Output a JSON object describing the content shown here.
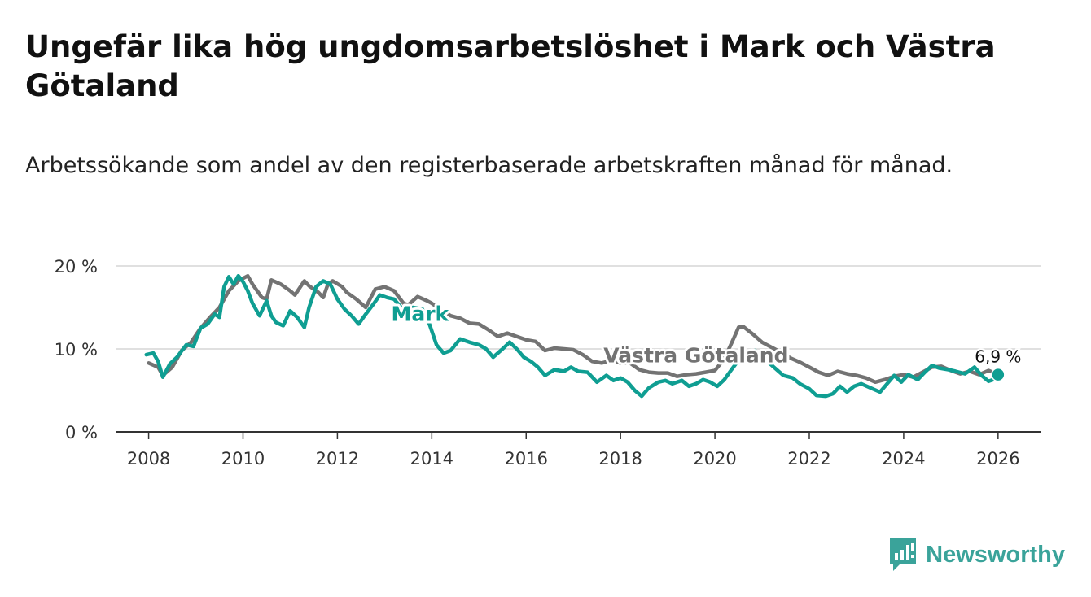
{
  "brand": {
    "name": "Newsworthy",
    "color": "#3aa39a"
  },
  "chart_data": {
    "type": "line",
    "title": "Ungefär lika hög ungdomsarbetslöshet i Mark och Västra Götaland",
    "subtitle": "Arbetssökande som andel av den registerbaserade arbetskraften månad för månad.",
    "xlabel": "",
    "ylabel": "",
    "xlim": [
      2007.3,
      2026.9
    ],
    "ylim": [
      0,
      20
    ],
    "grid": true,
    "x_ticks": [
      {
        "value": 2008,
        "label": "2008"
      },
      {
        "value": 2010,
        "label": "2010"
      },
      {
        "value": 2012,
        "label": "2012"
      },
      {
        "value": 2014,
        "label": "2014"
      },
      {
        "value": 2016,
        "label": "2016"
      },
      {
        "value": 2018,
        "label": "2018"
      },
      {
        "value": 2020,
        "label": "2020"
      },
      {
        "value": 2022,
        "label": "2022"
      },
      {
        "value": 2024,
        "label": "2024"
      },
      {
        "value": 2026,
        "label": "2026"
      }
    ],
    "y_ticks": [
      {
        "value": 0,
        "label": "0 %"
      },
      {
        "value": 10,
        "label": "10 %"
      },
      {
        "value": 20,
        "label": "20 %"
      }
    ],
    "series": [
      {
        "name": "Västra Götaland",
        "color": "#737373",
        "points": [
          [
            2008.0,
            8.3
          ],
          [
            2008.2,
            7.8
          ],
          [
            2008.3,
            6.8
          ],
          [
            2008.5,
            7.8
          ],
          [
            2008.7,
            9.8
          ],
          [
            2008.9,
            10.8
          ],
          [
            2009.1,
            12.5
          ],
          [
            2009.3,
            13.8
          ],
          [
            2009.5,
            15.0
          ],
          [
            2009.7,
            17.0
          ],
          [
            2009.9,
            18.2
          ],
          [
            2010.1,
            18.8
          ],
          [
            2010.2,
            17.8
          ],
          [
            2010.4,
            16.2
          ],
          [
            2010.5,
            16.0
          ],
          [
            2010.6,
            18.3
          ],
          [
            2010.8,
            17.8
          ],
          [
            2011.0,
            17.0
          ],
          [
            2011.1,
            16.5
          ],
          [
            2011.3,
            18.2
          ],
          [
            2011.4,
            17.6
          ],
          [
            2011.6,
            16.8
          ],
          [
            2011.7,
            16.2
          ],
          [
            2011.8,
            17.8
          ],
          [
            2011.9,
            18.2
          ],
          [
            2012.1,
            17.5
          ],
          [
            2012.2,
            16.8
          ],
          [
            2012.4,
            16.0
          ],
          [
            2012.6,
            15.0
          ],
          [
            2012.8,
            17.2
          ],
          [
            2013.0,
            17.5
          ],
          [
            2013.2,
            17.0
          ],
          [
            2013.4,
            15.5
          ],
          [
            2013.5,
            15.3
          ],
          [
            2013.7,
            16.3
          ],
          [
            2013.9,
            15.8
          ],
          [
            2014.0,
            15.5
          ],
          [
            2014.2,
            14.7
          ],
          [
            2014.4,
            14.0
          ],
          [
            2014.6,
            13.7
          ],
          [
            2014.8,
            13.1
          ],
          [
            2015.0,
            13.0
          ],
          [
            2015.2,
            12.3
          ],
          [
            2015.4,
            11.5
          ],
          [
            2015.6,
            11.9
          ],
          [
            2015.8,
            11.5
          ],
          [
            2016.0,
            11.1
          ],
          [
            2016.2,
            10.9
          ],
          [
            2016.4,
            9.8
          ],
          [
            2016.6,
            10.1
          ],
          [
            2016.8,
            10.0
          ],
          [
            2017.0,
            9.9
          ],
          [
            2017.2,
            9.3
          ],
          [
            2017.4,
            8.5
          ],
          [
            2017.6,
            8.3
          ],
          [
            2017.8,
            8.6
          ],
          [
            2018.0,
            8.3
          ],
          [
            2018.2,
            8.3
          ],
          [
            2018.4,
            7.5
          ],
          [
            2018.6,
            7.2
          ],
          [
            2018.8,
            7.1
          ],
          [
            2019.0,
            7.1
          ],
          [
            2019.2,
            6.7
          ],
          [
            2019.4,
            6.9
          ],
          [
            2019.6,
            7.0
          ],
          [
            2019.8,
            7.2
          ],
          [
            2020.0,
            7.4
          ],
          [
            2020.2,
            8.8
          ],
          [
            2020.4,
            11.3
          ],
          [
            2020.5,
            12.6
          ],
          [
            2020.6,
            12.7
          ],
          [
            2020.8,
            11.8
          ],
          [
            2021.0,
            10.8
          ],
          [
            2021.2,
            10.2
          ],
          [
            2021.4,
            9.6
          ],
          [
            2021.6,
            8.9
          ],
          [
            2021.8,
            8.4
          ],
          [
            2022.0,
            7.8
          ],
          [
            2022.2,
            7.2
          ],
          [
            2022.4,
            6.8
          ],
          [
            2022.6,
            7.3
          ],
          [
            2022.8,
            7.0
          ],
          [
            2023.0,
            6.8
          ],
          [
            2023.2,
            6.5
          ],
          [
            2023.4,
            6.0
          ],
          [
            2023.6,
            6.3
          ],
          [
            2023.8,
            6.7
          ],
          [
            2024.0,
            6.9
          ],
          [
            2024.2,
            6.6
          ],
          [
            2024.4,
            7.2
          ],
          [
            2024.6,
            7.8
          ],
          [
            2024.8,
            7.9
          ],
          [
            2025.0,
            7.4
          ],
          [
            2025.2,
            7.0
          ],
          [
            2025.4,
            7.3
          ],
          [
            2025.6,
            6.9
          ],
          [
            2025.8,
            7.4
          ],
          [
            2026.0,
            6.9
          ]
        ]
      },
      {
        "name": "Mark",
        "color": "#0f9e92",
        "points": [
          [
            2007.95,
            9.3
          ],
          [
            2008.1,
            9.5
          ],
          [
            2008.2,
            8.5
          ],
          [
            2008.3,
            6.6
          ],
          [
            2008.45,
            8.2
          ],
          [
            2008.6,
            9.0
          ],
          [
            2008.8,
            10.5
          ],
          [
            2008.95,
            10.3
          ],
          [
            2009.1,
            12.5
          ],
          [
            2009.25,
            13.0
          ],
          [
            2009.4,
            14.2
          ],
          [
            2009.5,
            13.8
          ],
          [
            2009.6,
            17.5
          ],
          [
            2009.7,
            18.7
          ],
          [
            2009.8,
            17.8
          ],
          [
            2009.9,
            18.8
          ],
          [
            2010.0,
            18.1
          ],
          [
            2010.1,
            17.0
          ],
          [
            2010.2,
            15.5
          ],
          [
            2010.35,
            14.0
          ],
          [
            2010.5,
            15.8
          ],
          [
            2010.6,
            14.0
          ],
          [
            2010.7,
            13.2
          ],
          [
            2010.85,
            12.8
          ],
          [
            2011.0,
            14.6
          ],
          [
            2011.15,
            13.8
          ],
          [
            2011.3,
            12.6
          ],
          [
            2011.4,
            15.0
          ],
          [
            2011.55,
            17.5
          ],
          [
            2011.7,
            18.2
          ],
          [
            2011.85,
            17.8
          ],
          [
            2012.0,
            16.0
          ],
          [
            2012.15,
            14.8
          ],
          [
            2012.3,
            14.0
          ],
          [
            2012.45,
            13.0
          ],
          [
            2012.6,
            14.2
          ],
          [
            2012.75,
            15.3
          ],
          [
            2012.9,
            16.5
          ],
          [
            2013.05,
            16.2
          ],
          [
            2013.2,
            16.0
          ],
          [
            2013.35,
            15.0
          ],
          [
            2013.5,
            14.2
          ],
          [
            2013.6,
            15.0
          ],
          [
            2013.8,
            14.8
          ],
          [
            2013.95,
            13.0
          ],
          [
            2014.1,
            10.5
          ],
          [
            2014.25,
            9.5
          ],
          [
            2014.4,
            9.8
          ],
          [
            2014.6,
            11.2
          ],
          [
            2014.8,
            10.8
          ],
          [
            2015.0,
            10.5
          ],
          [
            2015.15,
            10.0
          ],
          [
            2015.3,
            9.0
          ],
          [
            2015.5,
            10.0
          ],
          [
            2015.65,
            10.8
          ],
          [
            2015.8,
            10.0
          ],
          [
            2015.95,
            9.0
          ],
          [
            2016.1,
            8.5
          ],
          [
            2016.25,
            7.8
          ],
          [
            2016.4,
            6.8
          ],
          [
            2016.6,
            7.5
          ],
          [
            2016.8,
            7.3
          ],
          [
            2016.95,
            7.8
          ],
          [
            2017.1,
            7.3
          ],
          [
            2017.3,
            7.2
          ],
          [
            2017.5,
            6.0
          ],
          [
            2017.7,
            6.8
          ],
          [
            2017.85,
            6.2
          ],
          [
            2018.0,
            6.5
          ],
          [
            2018.15,
            6.0
          ],
          [
            2018.3,
            5.0
          ],
          [
            2018.45,
            4.3
          ],
          [
            2018.6,
            5.3
          ],
          [
            2018.8,
            6.0
          ],
          [
            2018.95,
            6.2
          ],
          [
            2019.1,
            5.8
          ],
          [
            2019.3,
            6.2
          ],
          [
            2019.45,
            5.5
          ],
          [
            2019.6,
            5.8
          ],
          [
            2019.75,
            6.3
          ],
          [
            2019.9,
            6.0
          ],
          [
            2020.05,
            5.5
          ],
          [
            2020.2,
            6.3
          ],
          [
            2020.35,
            7.5
          ],
          [
            2020.55,
            9.0
          ],
          [
            2020.7,
            9.5
          ],
          [
            2020.85,
            9.8
          ],
          [
            2021.05,
            8.8
          ],
          [
            2021.25,
            7.8
          ],
          [
            2021.45,
            6.8
          ],
          [
            2021.65,
            6.5
          ],
          [
            2021.8,
            5.8
          ],
          [
            2022.0,
            5.2
          ],
          [
            2022.15,
            4.4
          ],
          [
            2022.35,
            4.3
          ],
          [
            2022.5,
            4.6
          ],
          [
            2022.65,
            5.5
          ],
          [
            2022.8,
            4.8
          ],
          [
            2022.95,
            5.5
          ],
          [
            2023.1,
            5.8
          ],
          [
            2023.3,
            5.3
          ],
          [
            2023.5,
            4.8
          ],
          [
            2023.65,
            5.8
          ],
          [
            2023.8,
            6.8
          ],
          [
            2023.95,
            6.0
          ],
          [
            2024.1,
            6.9
          ],
          [
            2024.3,
            6.3
          ],
          [
            2024.45,
            7.2
          ],
          [
            2024.6,
            8.0
          ],
          [
            2024.75,
            7.7
          ],
          [
            2024.95,
            7.5
          ],
          [
            2025.1,
            7.3
          ],
          [
            2025.3,
            7.0
          ],
          [
            2025.5,
            7.8
          ],
          [
            2025.65,
            6.8
          ],
          [
            2025.8,
            6.1
          ],
          [
            2025.95,
            6.4
          ],
          [
            2026.0,
            6.9
          ]
        ]
      }
    ],
    "annotations": [
      {
        "text": "Mark",
        "series": "Mark",
        "x": 2013.75,
        "y": 13.4
      },
      {
        "text": "Västra Götaland",
        "series": "Västra Götaland",
        "x": 2019.6,
        "y": 8.4
      },
      {
        "text": "6,9 %",
        "x": 2026.0,
        "y": 6.9
      }
    ]
  }
}
